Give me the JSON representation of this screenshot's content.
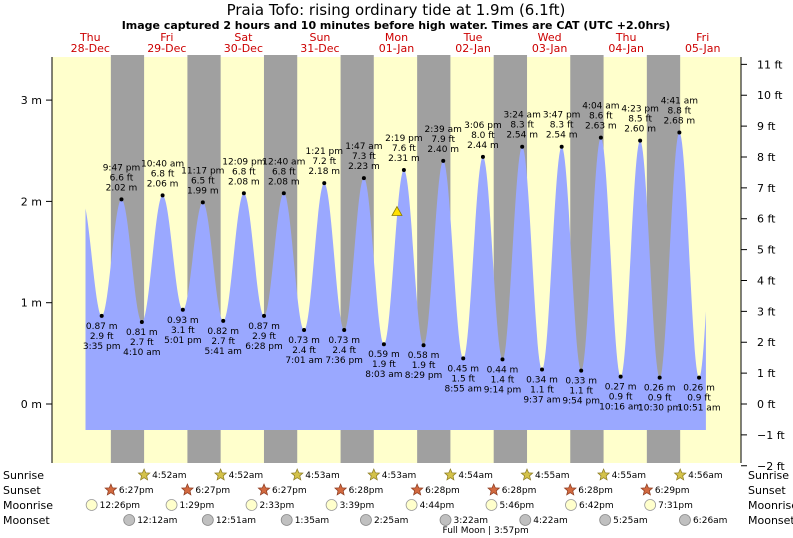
{
  "chart_data": {
    "type": "area",
    "title": "Praia Tofo: rising  ordinary tide at 1.9m (6.1ft)",
    "subtitle": "Image captured 2 hours and 10 minutes before high water. Times are CAT (UTC +2.0hrs)",
    "y_left_unit": "m",
    "y_right_unit": "ft",
    "ylim": [
      -0.45,
      3.4
    ],
    "y_left_ticks": [
      0,
      1,
      2,
      3
    ],
    "y_right_ticks": [
      -2,
      -1,
      0,
      1,
      2,
      3,
      4,
      5,
      6,
      7,
      8,
      9,
      10,
      11
    ],
    "days": [
      {
        "dow": "Thu",
        "date": "28-Dec"
      },
      {
        "dow": "Fri",
        "date": "29-Dec"
      },
      {
        "dow": "Sat",
        "date": "30-Dec"
      },
      {
        "dow": "Sun",
        "date": "31-Dec"
      },
      {
        "dow": "Mon",
        "date": "01-Jan"
      },
      {
        "dow": "Tue",
        "date": "02-Jan"
      },
      {
        "dow": "Wed",
        "date": "03-Jan"
      },
      {
        "dow": "Thu",
        "date": "04-Jan"
      },
      {
        "dow": "Fri",
        "date": "05-Jan"
      }
    ],
    "tides": [
      {
        "type": "low",
        "t": 15.58,
        "m": 0.87,
        "m_label": "0.87 m",
        "ft_label": "2.9 ft",
        "time": "3:35 pm"
      },
      {
        "type": "high",
        "t": 21.78,
        "m": 2.02,
        "m_label": "2.02 m",
        "ft_label": "6.6 ft",
        "time": "9:47 pm"
      },
      {
        "type": "low",
        "t": 28.17,
        "m": 0.81,
        "m_label": "0.81 m",
        "ft_label": "2.7 ft",
        "time": "4:10 am"
      },
      {
        "type": "high",
        "t": 34.67,
        "m": 2.06,
        "m_label": "2.06 m",
        "ft_label": "6.8 ft",
        "time": "10:40 am"
      },
      {
        "type": "low",
        "t": 41.02,
        "m": 0.93,
        "m_label": "0.93 m",
        "ft_label": "3.1 ft",
        "time": "5:01 pm"
      },
      {
        "type": "high",
        "t": 47.28,
        "m": 1.99,
        "m_label": "1.99 m",
        "ft_label": "6.5 ft",
        "time": "11:17 pm"
      },
      {
        "type": "low",
        "t": 53.68,
        "m": 0.82,
        "m_label": "0.82 m",
        "ft_label": "2.7 ft",
        "time": "5:41 am"
      },
      {
        "type": "high",
        "t": 60.15,
        "m": 2.08,
        "m_label": "2.08 m",
        "ft_label": "6.8 ft",
        "time": "12:09 pm"
      },
      {
        "type": "low",
        "t": 66.47,
        "m": 0.87,
        "m_label": "0.87 m",
        "ft_label": "2.9 ft",
        "time": "6:28 pm"
      },
      {
        "type": "high",
        "t": 72.67,
        "m": 2.08,
        "m_label": "2.08 m",
        "ft_label": "6.8 ft",
        "time": "12:40 am"
      },
      {
        "type": "low",
        "t": 79.02,
        "m": 0.73,
        "m_label": "0.73 m",
        "ft_label": "2.4 ft",
        "time": "7:01 am"
      },
      {
        "type": "high",
        "t": 85.35,
        "m": 2.18,
        "m_label": "2.18 m",
        "ft_label": "7.2 ft",
        "time": "1:21 pm"
      },
      {
        "type": "low",
        "t": 91.6,
        "m": 0.73,
        "m_label": "0.73 m",
        "ft_label": "2.4 ft",
        "time": "7:36 pm"
      },
      {
        "type": "high",
        "t": 97.78,
        "m": 2.23,
        "m_label": "2.23 m",
        "ft_label": "7.3 ft",
        "time": "1:47 am"
      },
      {
        "type": "low",
        "t": 104.05,
        "m": 0.59,
        "m_label": "0.59 m",
        "ft_label": "1.9 ft",
        "time": "8:03 am"
      },
      {
        "type": "high",
        "t": 110.32,
        "m": 2.31,
        "m_label": "2.31 m",
        "ft_label": "7.6 ft",
        "time": "2:19 pm"
      },
      {
        "type": "low",
        "t": 116.48,
        "m": 0.58,
        "m_label": "0.58 m",
        "ft_label": "1.9 ft",
        "time": "8:29 pm"
      },
      {
        "type": "high",
        "t": 122.65,
        "m": 2.4,
        "m_label": "2.40 m",
        "ft_label": "7.9 ft",
        "time": "2:39 am"
      },
      {
        "type": "low",
        "t": 128.92,
        "m": 0.45,
        "m_label": "0.45 m",
        "ft_label": "1.5 ft",
        "time": "8:55 am"
      },
      {
        "type": "high",
        "t": 135.1,
        "m": 2.44,
        "m_label": "2.44 m",
        "ft_label": "8.0 ft",
        "time": "3:06 pm"
      },
      {
        "type": "low",
        "t": 141.23,
        "m": 0.44,
        "m_label": "0.44 m",
        "ft_label": "1.4 ft",
        "time": "9:14 pm"
      },
      {
        "type": "high",
        "t": 147.4,
        "m": 2.54,
        "m_label": "2.54 m",
        "ft_label": "8.3 ft",
        "time": "3:24 am"
      },
      {
        "type": "low",
        "t": 153.62,
        "m": 0.34,
        "m_label": "0.34 m",
        "ft_label": "1.1 ft",
        "time": "9:37 am"
      },
      {
        "type": "high",
        "t": 159.78,
        "m": 2.54,
        "m_label": "2.54 m",
        "ft_label": "8.3 ft",
        "time": "3:47 pm"
      },
      {
        "type": "low",
        "t": 165.9,
        "m": 0.33,
        "m_label": "0.33 m",
        "ft_label": "1.1 ft",
        "time": "9:54 pm"
      },
      {
        "type": "high",
        "t": 172.07,
        "m": 2.63,
        "m_label": "2.63 m",
        "ft_label": "8.6 ft",
        "time": "4:04 am"
      },
      {
        "type": "low",
        "t": 178.27,
        "m": 0.27,
        "m_label": "0.27 m",
        "ft_label": "0.9 ft",
        "time": "10:16 am"
      },
      {
        "type": "high",
        "t": 184.38,
        "m": 2.6,
        "m_label": "2.60 m",
        "ft_label": "8.5 ft",
        "time": "4:23 pm"
      },
      {
        "type": "low",
        "t": 190.5,
        "m": 0.26,
        "m_label": "0.26 m",
        "ft_label": "0.9 ft",
        "time": "10:30 pm"
      },
      {
        "type": "high",
        "t": 196.68,
        "m": 2.68,
        "m_label": "2.68 m",
        "ft_label": "8.8 ft",
        "time": "4:41 am"
      },
      {
        "type": "low",
        "t": 202.85,
        "m": 0.26,
        "m_label": "0.26 m",
        "ft_label": "0.9 ft",
        "time": "10:51 am"
      }
    ],
    "current_marker": {
      "t": 108.15,
      "m": 1.9
    },
    "sunrise": [
      {
        "t": 28.87,
        "label": "4:52am"
      },
      {
        "t": 52.87,
        "label": "4:52am"
      },
      {
        "t": 76.88,
        "label": "4:53am"
      },
      {
        "t": 100.88,
        "label": "4:53am"
      },
      {
        "t": 124.9,
        "label": "4:54am"
      },
      {
        "t": 148.92,
        "label": "4:55am"
      },
      {
        "t": 172.92,
        "label": "4:55am"
      },
      {
        "t": 196.93,
        "label": "4:56am"
      }
    ],
    "sunset": [
      {
        "t": 18.45,
        "label": "6:27pm"
      },
      {
        "t": 42.45,
        "label": "6:27pm"
      },
      {
        "t": 66.45,
        "label": "6:27pm"
      },
      {
        "t": 90.47,
        "label": "6:28pm"
      },
      {
        "t": 114.47,
        "label": "6:28pm"
      },
      {
        "t": 138.47,
        "label": "6:28pm"
      },
      {
        "t": 162.47,
        "label": "6:28pm"
      },
      {
        "t": 186.48,
        "label": "6:29pm"
      }
    ],
    "moonrise": [
      {
        "t": 12.43,
        "label": "12:26pm"
      },
      {
        "t": 37.48,
        "label": "1:29pm"
      },
      {
        "t": 62.55,
        "label": "2:33pm"
      },
      {
        "t": 87.65,
        "label": "3:39pm"
      },
      {
        "t": 112.73,
        "label": "4:44pm"
      },
      {
        "t": 137.77,
        "label": "5:46pm"
      },
      {
        "t": 162.7,
        "label": "6:42pm"
      },
      {
        "t": 187.52,
        "label": "7:31pm"
      }
    ],
    "moonset": [
      {
        "t": 24.2,
        "label": "12:12am"
      },
      {
        "t": 48.85,
        "label": "12:51am"
      },
      {
        "t": 73.58,
        "label": "1:35am"
      },
      {
        "t": 98.42,
        "label": "2:25am"
      },
      {
        "t": 123.37,
        "label": "3:22am"
      },
      {
        "t": 148.37,
        "label": "4:22am"
      },
      {
        "t": 173.42,
        "label": "5:25am"
      },
      {
        "t": 198.43,
        "label": "6:26am"
      }
    ],
    "row_labels": {
      "sunrise": "Sunrise",
      "sunset": "Sunset",
      "moonrise": "Moonrise",
      "moonset": "Moonset"
    },
    "full_moon_label": "Full Moon | 3:57pm",
    "full_moon_t": 135.95,
    "colors": {
      "day": "#ffffcc",
      "night": "#a0a0a0",
      "tide": "#9aa8ff",
      "day_label": "#cc0000",
      "sunrise_star": "#d4c24a",
      "sunset_star": "#d2693f",
      "moonrise": "#ffffcc",
      "moonset": "#c0c0c0",
      "marker": "#ffe000"
    }
  }
}
